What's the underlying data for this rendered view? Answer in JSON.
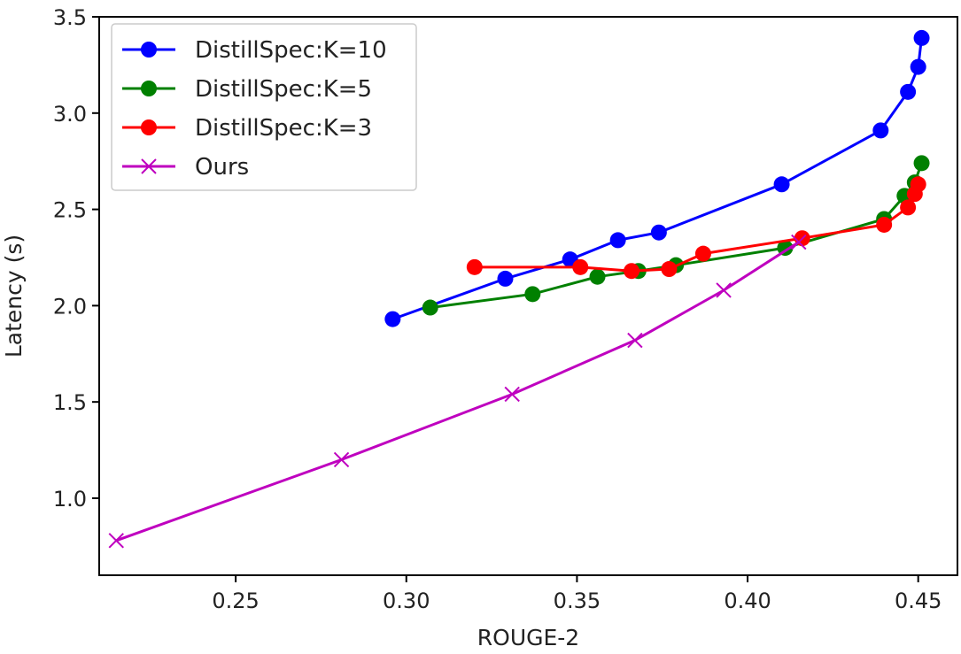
{
  "chart_data": {
    "type": "line",
    "xlabel": "ROUGE-2",
    "ylabel": "Latency (s)",
    "xlim": [
      0.21,
      0.4615
    ],
    "ylim": [
      0.6,
      3.5
    ],
    "xticks": [
      0.25,
      0.3,
      0.35,
      0.4,
      0.45
    ],
    "xtick_labels": [
      "0.25",
      "0.30",
      "0.35",
      "0.40",
      "0.45"
    ],
    "yticks": [
      1.0,
      1.5,
      2.0,
      2.5,
      3.0,
      3.5
    ],
    "ytick_labels": [
      "1.0",
      "1.5",
      "2.0",
      "2.5",
      "3.0",
      "3.5"
    ],
    "grid": false,
    "legend_position": "top-left",
    "series": [
      {
        "name": "DistillSpec:K=10",
        "color": "#0000ff",
        "marker": "circle",
        "points": [
          [
            0.296,
            1.93
          ],
          [
            0.329,
            2.14
          ],
          [
            0.348,
            2.24
          ],
          [
            0.362,
            2.34
          ],
          [
            0.374,
            2.38
          ],
          [
            0.41,
            2.63
          ],
          [
            0.439,
            2.91
          ],
          [
            0.447,
            3.11
          ],
          [
            0.45,
            3.24
          ],
          [
            0.451,
            3.39
          ]
        ]
      },
      {
        "name": "DistillSpec:K=5",
        "color": "#008000",
        "marker": "circle",
        "points": [
          [
            0.307,
            1.99
          ],
          [
            0.337,
            2.06
          ],
          [
            0.356,
            2.15
          ],
          [
            0.368,
            2.18
          ],
          [
            0.379,
            2.21
          ],
          [
            0.411,
            2.3
          ],
          [
            0.44,
            2.45
          ],
          [
            0.446,
            2.57
          ],
          [
            0.449,
            2.64
          ],
          [
            0.451,
            2.74
          ]
        ]
      },
      {
        "name": "DistillSpec:K=3",
        "color": "#ff0000",
        "marker": "circle",
        "points": [
          [
            0.32,
            2.2
          ],
          [
            0.351,
            2.2
          ],
          [
            0.366,
            2.18
          ],
          [
            0.377,
            2.19
          ],
          [
            0.387,
            2.27
          ],
          [
            0.416,
            2.35
          ],
          [
            0.44,
            2.42
          ],
          [
            0.447,
            2.51
          ],
          [
            0.449,
            2.58
          ],
          [
            0.45,
            2.63
          ]
        ]
      },
      {
        "name": "Ours",
        "color": "#bf00bf",
        "marker": "x",
        "points": [
          [
            0.215,
            0.78
          ],
          [
            0.281,
            1.2
          ],
          [
            0.331,
            1.54
          ],
          [
            0.367,
            1.82
          ],
          [
            0.393,
            2.08
          ],
          [
            0.415,
            2.33
          ]
        ]
      }
    ]
  }
}
